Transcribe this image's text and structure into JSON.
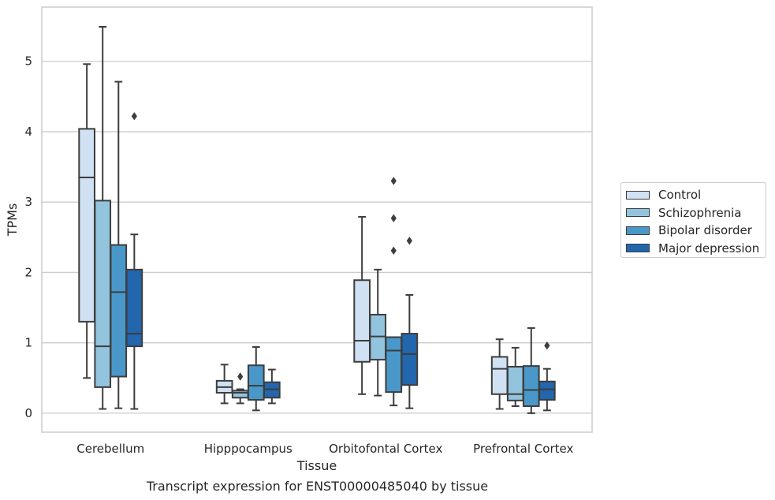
{
  "chart_data": {
    "type": "box",
    "title": "",
    "caption": "Transcript expression for ENST00000485040 by tissue",
    "xlabel": "Tissue",
    "ylabel": "TPMs",
    "ylim": [
      -0.27,
      5.77
    ],
    "yticks": [
      0,
      1,
      2,
      3,
      4,
      5
    ],
    "grid": true,
    "legend_position": "right",
    "categories": [
      "Cerebellum",
      "Hipppocampus",
      "Orbitofontal Cortex",
      "Prefrontal Cortex"
    ],
    "series": [
      {
        "name": "Control",
        "color": "#cfe1f2",
        "boxes": [
          {
            "whisker_low": 0.5,
            "q1": 1.3,
            "median": 3.35,
            "q3": 4.04,
            "whisker_high": 4.96,
            "outliers": []
          },
          {
            "whisker_low": 0.14,
            "q1": 0.29,
            "median": 0.37,
            "q3": 0.46,
            "whisker_high": 0.69,
            "outliers": []
          },
          {
            "whisker_low": 0.27,
            "q1": 0.73,
            "median": 1.03,
            "q3": 1.89,
            "whisker_high": 2.79,
            "outliers": []
          },
          {
            "whisker_low": 0.06,
            "q1": 0.27,
            "median": 0.63,
            "q3": 0.8,
            "whisker_high": 1.05,
            "outliers": []
          }
        ]
      },
      {
        "name": "Schizophrenia",
        "color": "#93c4de",
        "boxes": [
          {
            "whisker_low": 0.06,
            "q1": 0.37,
            "median": 0.95,
            "q3": 3.02,
            "whisker_high": 5.49,
            "outliers": []
          },
          {
            "whisker_low": 0.14,
            "q1": 0.22,
            "median": 0.29,
            "q3": 0.32,
            "whisker_high": 0.34,
            "outliers": [
              0.52
            ]
          },
          {
            "whisker_low": 0.25,
            "q1": 0.76,
            "median": 1.09,
            "q3": 1.4,
            "whisker_high": 2.04,
            "outliers": []
          },
          {
            "whisker_low": 0.1,
            "q1": 0.18,
            "median": 0.27,
            "q3": 0.66,
            "whisker_high": 0.93,
            "outliers": []
          }
        ]
      },
      {
        "name": "Bipolar disorder",
        "color": "#4a98c9",
        "boxes": [
          {
            "whisker_low": 0.07,
            "q1": 0.52,
            "median": 1.72,
            "q3": 2.39,
            "whisker_high": 4.71,
            "outliers": []
          },
          {
            "whisker_low": 0.04,
            "q1": 0.19,
            "median": 0.39,
            "q3": 0.68,
            "whisker_high": 0.94,
            "outliers": []
          },
          {
            "whisker_low": 0.11,
            "q1": 0.3,
            "median": 0.89,
            "q3": 1.08,
            "whisker_high": 1.08,
            "outliers": [
              2.31,
              2.77,
              3.3
            ]
          },
          {
            "whisker_low": 0.0,
            "q1": 0.1,
            "median": 0.33,
            "q3": 0.67,
            "whisker_high": 1.21,
            "outliers": []
          }
        ]
      },
      {
        "name": "Major depression",
        "color": "#2266ad",
        "boxes": [
          {
            "whisker_low": 0.06,
            "q1": 0.95,
            "median": 1.13,
            "q3": 2.04,
            "whisker_high": 2.54,
            "outliers": [
              4.22
            ]
          },
          {
            "whisker_low": 0.14,
            "q1": 0.22,
            "median": 0.34,
            "q3": 0.44,
            "whisker_high": 0.62,
            "outliers": []
          },
          {
            "whisker_low": 0.07,
            "q1": 0.4,
            "median": 0.84,
            "q3": 1.13,
            "whisker_high": 1.68,
            "outliers": [
              2.45
            ]
          },
          {
            "whisker_low": 0.04,
            "q1": 0.19,
            "median": 0.34,
            "q3": 0.45,
            "whisker_high": 0.63,
            "outliers": [
              0.96
            ]
          }
        ]
      }
    ]
  }
}
